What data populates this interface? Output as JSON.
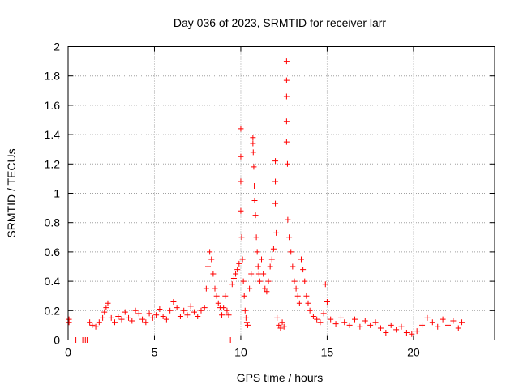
{
  "chart_data": {
    "type": "scatter",
    "title": "Day 036 of 2023, SRMTID for receiver larr",
    "xlabel": "GPS time / hours",
    "ylabel": "SRMTID / TECUs",
    "xlim": [
      0,
      24.7
    ],
    "ylim": [
      0,
      2
    ],
    "xticks": [
      0,
      5,
      10,
      15,
      20
    ],
    "xtick_labels": [
      "0",
      "5",
      "10",
      "15",
      "20"
    ],
    "yticks": [
      0,
      0.2,
      0.4,
      0.6,
      0.8,
      1,
      1.2,
      1.4,
      1.6,
      1.8,
      2
    ],
    "ytick_labels": [
      "0",
      "0.2",
      "0.4",
      "0.6",
      "0.8",
      "1",
      "1.2",
      "1.4",
      "1.6",
      "1.8",
      "2"
    ],
    "grid": true,
    "marker": "+",
    "color": "#ff0000",
    "series": [
      {
        "name": "SRMTID",
        "points": [
          [
            0.05,
            0.14
          ],
          [
            0.05,
            0.12
          ],
          [
            0.45,
            0.0
          ],
          [
            0.85,
            0.0
          ],
          [
            1.0,
            0.0
          ],
          [
            1.1,
            0.0
          ],
          [
            1.25,
            0.12
          ],
          [
            1.4,
            0.1
          ],
          [
            1.6,
            0.09
          ],
          [
            1.8,
            0.12
          ],
          [
            2.0,
            0.15
          ],
          [
            2.1,
            0.19
          ],
          [
            2.2,
            0.22
          ],
          [
            2.3,
            0.25
          ],
          [
            2.5,
            0.15
          ],
          [
            2.7,
            0.12
          ],
          [
            2.9,
            0.16
          ],
          [
            3.1,
            0.14
          ],
          [
            3.3,
            0.19
          ],
          [
            3.5,
            0.15
          ],
          [
            3.7,
            0.13
          ],
          [
            3.9,
            0.2
          ],
          [
            4.1,
            0.18
          ],
          [
            4.3,
            0.14
          ],
          [
            4.5,
            0.12
          ],
          [
            4.7,
            0.18
          ],
          [
            4.9,
            0.15
          ],
          [
            5.1,
            0.17
          ],
          [
            5.3,
            0.21
          ],
          [
            5.5,
            0.16
          ],
          [
            5.7,
            0.14
          ],
          [
            5.9,
            0.2
          ],
          [
            6.1,
            0.26
          ],
          [
            6.3,
            0.22
          ],
          [
            6.5,
            0.16
          ],
          [
            6.7,
            0.2
          ],
          [
            6.9,
            0.17
          ],
          [
            7.1,
            0.23
          ],
          [
            7.3,
            0.19
          ],
          [
            7.5,
            0.16
          ],
          [
            7.7,
            0.2
          ],
          [
            7.9,
            0.22
          ],
          [
            8.0,
            0.35
          ],
          [
            8.1,
            0.5
          ],
          [
            8.2,
            0.6
          ],
          [
            8.3,
            0.55
          ],
          [
            8.4,
            0.45
          ],
          [
            8.5,
            0.35
          ],
          [
            8.6,
            0.3
          ],
          [
            8.7,
            0.25
          ],
          [
            8.8,
            0.22
          ],
          [
            8.9,
            0.17
          ],
          [
            9.0,
            0.22
          ],
          [
            9.1,
            0.3
          ],
          [
            9.2,
            0.2
          ],
          [
            9.3,
            0.17
          ],
          [
            9.4,
            0.0
          ],
          [
            9.5,
            0.38
          ],
          [
            9.6,
            0.42
          ],
          [
            9.7,
            0.45
          ],
          [
            9.8,
            0.48
          ],
          [
            9.9,
            0.52
          ],
          [
            10.0,
            1.44
          ],
          [
            10.0,
            1.25
          ],
          [
            10.0,
            1.08
          ],
          [
            10.0,
            0.88
          ],
          [
            10.05,
            0.7
          ],
          [
            10.1,
            0.55
          ],
          [
            10.15,
            0.4
          ],
          [
            10.2,
            0.3
          ],
          [
            10.25,
            0.2
          ],
          [
            10.3,
            0.15
          ],
          [
            10.35,
            0.12
          ],
          [
            10.4,
            0.1
          ],
          [
            10.5,
            0.35
          ],
          [
            10.6,
            0.45
          ],
          [
            10.7,
            1.38
          ],
          [
            10.7,
            1.34
          ],
          [
            10.72,
            1.28
          ],
          [
            10.75,
            1.18
          ],
          [
            10.78,
            1.05
          ],
          [
            10.8,
            0.95
          ],
          [
            10.85,
            0.85
          ],
          [
            10.9,
            0.7
          ],
          [
            10.95,
            0.6
          ],
          [
            11.0,
            0.5
          ],
          [
            11.05,
            0.45
          ],
          [
            11.1,
            0.4
          ],
          [
            11.2,
            0.55
          ],
          [
            11.3,
            0.45
          ],
          [
            11.4,
            0.35
          ],
          [
            11.5,
            0.33
          ],
          [
            11.6,
            0.4
          ],
          [
            11.7,
            0.5
          ],
          [
            11.8,
            0.55
          ],
          [
            11.9,
            0.62
          ],
          [
            12.0,
            1.22
          ],
          [
            12.0,
            1.08
          ],
          [
            12.0,
            0.93
          ],
          [
            12.05,
            0.73
          ],
          [
            12.1,
            0.15
          ],
          [
            12.2,
            0.1
          ],
          [
            12.3,
            0.08
          ],
          [
            12.4,
            0.12
          ],
          [
            12.5,
            0.09
          ],
          [
            12.65,
            1.9
          ],
          [
            12.65,
            1.77
          ],
          [
            12.65,
            1.66
          ],
          [
            12.65,
            1.49
          ],
          [
            12.65,
            1.35
          ],
          [
            12.7,
            1.2
          ],
          [
            12.72,
            0.82
          ],
          [
            12.8,
            0.7
          ],
          [
            12.9,
            0.6
          ],
          [
            13.0,
            0.5
          ],
          [
            13.1,
            0.4
          ],
          [
            13.2,
            0.35
          ],
          [
            13.3,
            0.3
          ],
          [
            13.4,
            0.25
          ],
          [
            13.5,
            0.55
          ],
          [
            13.6,
            0.48
          ],
          [
            13.7,
            0.4
          ],
          [
            13.8,
            0.3
          ],
          [
            13.9,
            0.25
          ],
          [
            14.0,
            0.2
          ],
          [
            14.2,
            0.16
          ],
          [
            14.4,
            0.14
          ],
          [
            14.6,
            0.12
          ],
          [
            14.8,
            0.18
          ],
          [
            14.9,
            0.38
          ],
          [
            15.0,
            0.26
          ],
          [
            15.2,
            0.14
          ],
          [
            15.5,
            0.11
          ],
          [
            15.8,
            0.15
          ],
          [
            16.0,
            0.12
          ],
          [
            16.3,
            0.1
          ],
          [
            16.6,
            0.14
          ],
          [
            16.9,
            0.09
          ],
          [
            17.2,
            0.13
          ],
          [
            17.5,
            0.1
          ],
          [
            17.8,
            0.12
          ],
          [
            18.1,
            0.08
          ],
          [
            18.4,
            0.05
          ],
          [
            18.7,
            0.1
          ],
          [
            19.0,
            0.07
          ],
          [
            19.3,
            0.09
          ],
          [
            19.6,
            0.05
          ],
          [
            19.9,
            0.04
          ],
          [
            20.2,
            0.06
          ],
          [
            20.5,
            0.1
          ],
          [
            20.8,
            0.15
          ],
          [
            21.1,
            0.12
          ],
          [
            21.4,
            0.09
          ],
          [
            21.7,
            0.14
          ],
          [
            22.0,
            0.1
          ],
          [
            22.3,
            0.13
          ],
          [
            22.6,
            0.08
          ],
          [
            22.8,
            0.12
          ]
        ]
      }
    ]
  }
}
